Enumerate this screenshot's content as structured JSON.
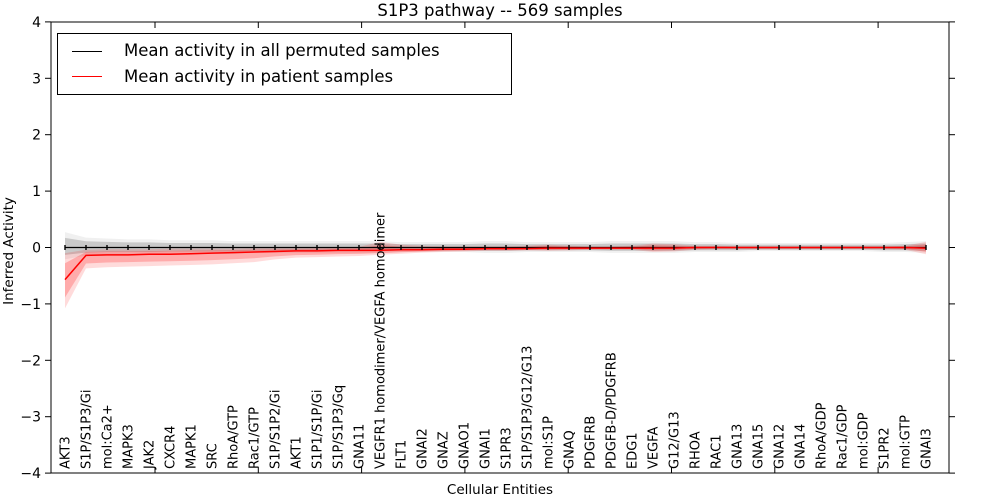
{
  "title": "S1P3 pathway -- 569 samples",
  "axes": {
    "xlabel": "Cellular Entities",
    "ylabel": "Inferred Activity",
    "ytick_labels": [
      "4",
      "3",
      "2",
      "1",
      "0",
      "−1",
      "−2",
      "−3",
      "−4"
    ],
    "ylim": [
      -4,
      4
    ]
  },
  "legend": {
    "items": [
      {
        "label": "Mean activity in all permuted samples",
        "color": "#000000"
      },
      {
        "label": "Mean activity in patient samples",
        "color": "#ff0000"
      }
    ]
  },
  "chart_data": {
    "type": "line",
    "title": "S1P3 pathway -- 569 samples",
    "xlabel": "Cellular Entities",
    "ylabel": "Inferred Activity",
    "ylim": [
      -4,
      4
    ],
    "yticks": [
      4,
      3,
      2,
      1,
      0,
      -1,
      -2,
      -3,
      -4
    ],
    "grid": false,
    "legend_position": "upper left",
    "categories": [
      "AKT3",
      "S1P/S1P3/Gi",
      "mol:Ca2+",
      "MAPK3",
      "JAK2",
      "CXCR4",
      "MAPK1",
      "SRC",
      "RhoA/GTP",
      "Rac1/GTP",
      "S1P/S1P2/Gi",
      "AKT1",
      "S1P1/S1P/Gi",
      "S1P/S1P3/Gq",
      "GNA11",
      "VEGFR1 homodimer/VEGFA homodimer",
      "FLT1",
      "GNAI2",
      "GNAZ",
      "GNAO1",
      "GNAI1",
      "S1PR3",
      "S1P/S1P3/G12/G13",
      "mol:S1P",
      "GNAQ",
      "PDGFRB",
      "PDGFB-D/PDGFRB",
      "EDG1",
      "VEGFA",
      "G12/G13",
      "RHOA",
      "RAC1",
      "GNA13",
      "GNA15",
      "GNA12",
      "GNA14",
      "RhoA/GDP",
      "Rac1/GDP",
      "mol:GDP",
      "S1PR2",
      "mol:GTP",
      "GNAI3"
    ],
    "series": [
      {
        "name": "Mean activity in all permuted samples",
        "color": "#000000",
        "values": [
          0,
          0,
          0,
          0,
          0,
          0,
          0,
          0,
          0,
          0,
          0,
          0,
          0,
          0,
          0,
          0,
          0,
          0,
          0,
          0,
          0,
          0,
          0,
          0,
          0,
          0,
          0,
          0,
          0,
          0,
          0,
          0,
          0,
          0,
          0,
          0,
          0,
          0,
          0,
          0,
          0,
          0
        ],
        "band_low": [
          -0.13,
          -0.09,
          -0.08,
          -0.08,
          -0.08,
          -0.07,
          -0.07,
          -0.07,
          -0.07,
          -0.06,
          -0.06,
          -0.06,
          -0.06,
          -0.06,
          -0.06,
          -0.06,
          -0.05,
          -0.05,
          -0.05,
          -0.05,
          -0.06,
          -0.06,
          -0.05,
          -0.05,
          -0.05,
          -0.05,
          -0.06,
          -0.06,
          -0.06,
          -0.06,
          -0.05,
          -0.05,
          -0.05,
          -0.04,
          -0.04,
          -0.04,
          -0.04,
          -0.04,
          -0.04,
          -0.05,
          -0.05,
          -0.06
        ],
        "band_high": [
          0.17,
          0.11,
          0.1,
          0.09,
          0.09,
          0.08,
          0.08,
          0.08,
          0.07,
          0.07,
          0.07,
          0.07,
          0.07,
          0.07,
          0.07,
          0.07,
          0.06,
          0.06,
          0.06,
          0.06,
          0.07,
          0.07,
          0.06,
          0.06,
          0.06,
          0.06,
          0.07,
          0.07,
          0.07,
          0.07,
          0.06,
          0.06,
          0.05,
          0.05,
          0.05,
          0.05,
          0.05,
          0.05,
          0.05,
          0.05,
          0.06,
          0.07
        ]
      },
      {
        "name": "Mean activity in patient samples",
        "color": "#ff0000",
        "values": [
          -0.57,
          -0.14,
          -0.13,
          -0.13,
          -0.12,
          -0.12,
          -0.11,
          -0.1,
          -0.09,
          -0.08,
          -0.07,
          -0.06,
          -0.06,
          -0.05,
          -0.05,
          -0.05,
          -0.04,
          -0.04,
          -0.03,
          -0.03,
          -0.02,
          -0.02,
          -0.02,
          -0.01,
          -0.01,
          -0.01,
          -0.01,
          -0.01,
          -0.01,
          -0.01,
          0,
          0,
          0,
          0,
          0,
          0,
          0,
          0,
          0,
          0,
          0,
          -0.01
        ],
        "band_low": [
          -1.08,
          -0.37,
          -0.35,
          -0.34,
          -0.33,
          -0.32,
          -0.31,
          -0.3,
          -0.28,
          -0.26,
          -0.21,
          -0.18,
          -0.17,
          -0.16,
          -0.15,
          -0.13,
          -0.11,
          -0.09,
          -0.08,
          -0.07,
          -0.06,
          -0.06,
          -0.05,
          -0.06,
          -0.05,
          -0.04,
          -0.04,
          -0.04,
          -0.08,
          -0.07,
          -0.04,
          -0.03,
          -0.03,
          -0.03,
          -0.03,
          -0.03,
          -0.03,
          -0.03,
          -0.03,
          -0.03,
          -0.04,
          -0.12
        ],
        "band_high": [
          -0.1,
          -0.04,
          -0.03,
          -0.03,
          -0.03,
          -0.02,
          -0.02,
          -0.02,
          -0.02,
          -0.01,
          -0.01,
          -0.01,
          0.0,
          0.0,
          0.01,
          0.1,
          0.05,
          0.03,
          0.02,
          0.02,
          0.02,
          0.02,
          0.03,
          0.05,
          0.03,
          0.02,
          0.02,
          0.03,
          0.07,
          0.06,
          0.03,
          0.03,
          0.02,
          0.02,
          0.02,
          0.02,
          0.02,
          0.02,
          0.02,
          0.02,
          0.03,
          0.1
        ]
      }
    ]
  }
}
